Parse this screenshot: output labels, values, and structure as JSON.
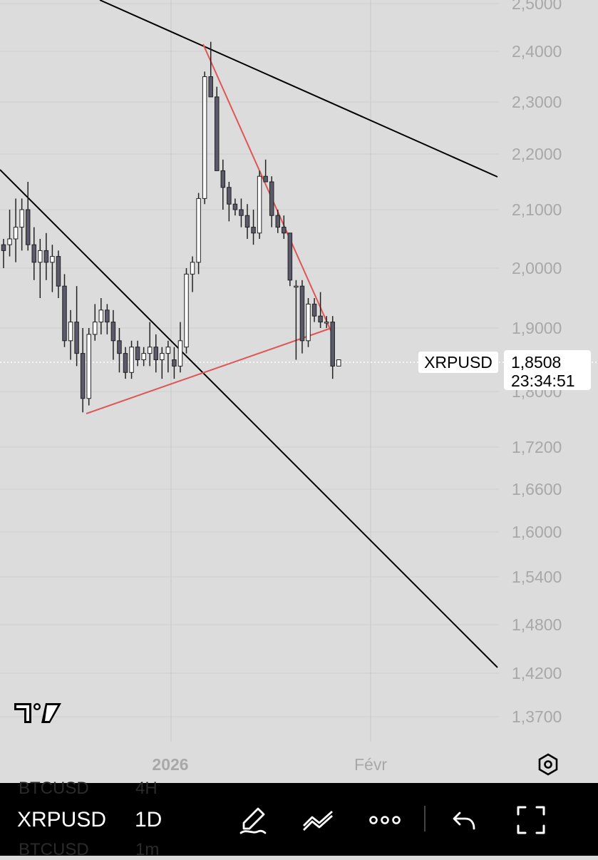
{
  "chart_data": {
    "type": "candlestick",
    "symbol": "XRPUSD",
    "y_ticks": [
      "2,5000",
      "2,4000",
      "2,3000",
      "2,2000",
      "2,1000",
      "2,0000",
      "1,9000",
      "1,8000",
      "1,7200",
      "1,6600",
      "1,6000",
      "1,5400",
      "1,4800",
      "1,4200",
      "1,3700"
    ],
    "y_tick_values": [
      2.5,
      2.4,
      2.3,
      2.2,
      2.1,
      2.0,
      1.9,
      1.8,
      1.72,
      1.66,
      1.6,
      1.54,
      1.48,
      1.42,
      1.37
    ],
    "x_ticks": [
      "2026",
      "Févr"
    ],
    "candles": [
      [
        2.04,
        2.05,
        2.0,
        2.03
      ],
      [
        2.04,
        2.1,
        2.02,
        2.05
      ],
      [
        2.05,
        2.12,
        2.01,
        2.07
      ],
      [
        2.07,
        2.12,
        2.03,
        2.1
      ],
      [
        2.1,
        2.15,
        2.03,
        2.04
      ],
      [
        2.04,
        2.07,
        1.98,
        2.01
      ],
      [
        2.01,
        2.05,
        1.95,
        2.03
      ],
      [
        2.03,
        2.06,
        1.98,
        2.01
      ],
      [
        2.01,
        2.04,
        1.96,
        2.02
      ],
      [
        2.02,
        2.03,
        1.95,
        1.97
      ],
      [
        1.97,
        1.99,
        1.87,
        1.88
      ],
      [
        1.88,
        1.93,
        1.85,
        1.91
      ],
      [
        1.91,
        1.97,
        1.84,
        1.86
      ],
      [
        1.86,
        1.9,
        1.77,
        1.79
      ],
      [
        1.79,
        1.9,
        1.78,
        1.89
      ],
      [
        1.89,
        1.94,
        1.88,
        1.91
      ],
      [
        1.91,
        1.95,
        1.89,
        1.93
      ],
      [
        1.93,
        1.94,
        1.89,
        1.91
      ],
      [
        1.91,
        1.93,
        1.85,
        1.88
      ],
      [
        1.88,
        1.9,
        1.83,
        1.86
      ],
      [
        1.86,
        1.87,
        1.82,
        1.83
      ],
      [
        1.83,
        1.88,
        1.82,
        1.87
      ],
      [
        1.87,
        1.88,
        1.84,
        1.85
      ],
      [
        1.85,
        1.87,
        1.84,
        1.86
      ],
      [
        1.86,
        1.91,
        1.84,
        1.87
      ],
      [
        1.87,
        1.89,
        1.83,
        1.85
      ],
      [
        1.85,
        1.87,
        1.82,
        1.86
      ],
      [
        1.86,
        1.88,
        1.83,
        1.87
      ],
      [
        1.85,
        1.87,
        1.82,
        1.84
      ],
      [
        1.84,
        1.91,
        1.83,
        1.88
      ],
      [
        1.87,
        2.0,
        1.86,
        1.99
      ],
      [
        1.99,
        2.02,
        1.96,
        2.01
      ],
      [
        2.01,
        2.13,
        1.99,
        2.12
      ],
      [
        2.12,
        2.36,
        2.11,
        2.35
      ],
      [
        2.35,
        2.42,
        2.31,
        2.31
      ],
      [
        2.31,
        2.33,
        2.17,
        2.17
      ],
      [
        2.17,
        2.19,
        2.1,
        2.14
      ],
      [
        2.14,
        2.15,
        2.08,
        2.11
      ],
      [
        2.11,
        2.12,
        2.09,
        2.1
      ],
      [
        2.1,
        2.12,
        2.07,
        2.09
      ],
      [
        2.09,
        2.11,
        2.05,
        2.07
      ],
      [
        2.07,
        2.1,
        2.04,
        2.06
      ],
      [
        2.06,
        2.17,
        2.05,
        2.16
      ],
      [
        2.16,
        2.19,
        2.15,
        2.15
      ],
      [
        2.15,
        2.16,
        2.07,
        2.09
      ],
      [
        2.09,
        2.1,
        2.06,
        2.07
      ],
      [
        2.07,
        2.09,
        2.05,
        2.06
      ],
      [
        2.06,
        2.06,
        1.97,
        1.98
      ],
      [
        1.97,
        1.98,
        1.85,
        1.97
      ],
      [
        1.97,
        1.98,
        1.86,
        1.88
      ],
      [
        1.88,
        1.95,
        1.87,
        1.94
      ],
      [
        1.94,
        1.95,
        1.91,
        1.92
      ],
      [
        1.92,
        1.96,
        1.9,
        1.91
      ],
      [
        1.91,
        1.92,
        1.9,
        1.91
      ],
      [
        1.91,
        1.92,
        1.82,
        1.84
      ],
      [
        1.84,
        1.85,
        1.84,
        1.85
      ]
    ],
    "price_label": "XRPUSD",
    "last_price": "1,8508",
    "countdown": "23:34:51"
  },
  "toolbar": {
    "symbol": "XRPUSD",
    "interval": "1D",
    "ghost_symbol_top": "BTCUSD",
    "ghost_interval_top": "4H",
    "ghost_symbol_bottom": "BTCUSD",
    "ghost_interval_bottom": "1m",
    "icons": [
      "brush-icon",
      "line-tool-icon",
      "more-icon",
      "undo-icon",
      "fullscreen-icon"
    ]
  },
  "colors": {
    "background": "#dcdcdc",
    "bull_body": "#ffffff",
    "bear_body": "#5a5a6a",
    "wick": "#222222",
    "trendline": "#000000",
    "pattern_line": "#e05555",
    "axis_text": "#a8a8a8",
    "toolbar": "#000000"
  }
}
